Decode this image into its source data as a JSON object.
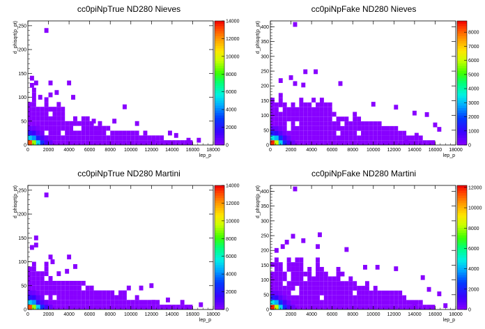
{
  "figure": {
    "layout": "2x2 grid of 2D histograms with color palette (COLZ)"
  },
  "chart_data": [
    {
      "type": "heatmap",
      "title": "cc0piNpTrue ND280 Nieves",
      "xlabel": "lep_p",
      "ylabel": "d_phisqrt(p_pt)",
      "xlim": [
        0,
        18000
      ],
      "ylim": [
        0,
        260
      ],
      "x_ticks": [
        "0",
        "2000",
        "4000",
        "6000",
        "8000",
        "10000",
        "12000",
        "14000",
        "16000",
        "18000"
      ],
      "y_ticks": [
        "0",
        "50",
        "100",
        "150",
        "200",
        "250"
      ],
      "colorbar": {
        "min": 0,
        "max": 14000,
        "ticks": [
          "0",
          "2000",
          "4000",
          "6000",
          "8000",
          "10000",
          "12000",
          "14000"
        ]
      },
      "cells": [
        [
          0,
          0,
          13000
        ],
        [
          400,
          0,
          9000
        ],
        [
          800,
          0,
          5200
        ],
        [
          1200,
          0,
          2600
        ],
        [
          1600,
          0,
          1200
        ],
        [
          2000,
          0,
          500
        ],
        [
          0,
          10,
          5000
        ],
        [
          400,
          10,
          4200
        ],
        [
          800,
          10,
          2200
        ],
        [
          1200,
          10,
          900
        ],
        [
          1600,
          10,
          400
        ],
        [
          0,
          20,
          1800
        ],
        [
          400,
          20,
          1400
        ],
        [
          800,
          20,
          700
        ],
        [
          1200,
          20,
          250
        ],
        [
          0,
          30,
          600
        ],
        [
          400,
          30,
          450
        ],
        [
          800,
          30,
          200
        ],
        [
          1600,
          235,
          5
        ],
        [
          200,
          135,
          5
        ],
        [
          200,
          120,
          5
        ],
        [
          600,
          125,
          5
        ],
        [
          2000,
          125,
          5
        ],
        [
          3800,
          125,
          5
        ],
        [
          400,
          110,
          5
        ],
        [
          1000,
          95,
          5
        ],
        [
          2600,
          105,
          5
        ],
        [
          2000,
          100,
          5
        ],
        [
          4200,
          95,
          5
        ],
        [
          9200,
          75,
          5
        ],
        [
          6200,
          45,
          5
        ],
        [
          8200,
          45,
          5
        ],
        [
          10400,
          40,
          5
        ],
        [
          11200,
          20,
          5
        ],
        [
          13600,
          20,
          5
        ],
        [
          14200,
          15,
          5
        ],
        [
          16400,
          5,
          5
        ],
        [
          15400,
          5,
          5
        ],
        [
          12000,
          5,
          5
        ]
      ],
      "bulk_cells_value": 5
    },
    {
      "type": "heatmap",
      "title": "cc0piNpFake ND280 Nieves",
      "xlabel": "lep_p",
      "ylabel": "d_phisqrt(p_pt)",
      "xlim": [
        0,
        18000
      ],
      "ylim": [
        0,
        420
      ],
      "x_ticks": [
        "0",
        "2000",
        "4000",
        "6000",
        "8000",
        "10000",
        "12000",
        "14000",
        "16000",
        "18000"
      ],
      "y_ticks": [
        "0",
        "50",
        "100",
        "150",
        "200",
        "250",
        "300",
        "350",
        "400"
      ],
      "colorbar": {
        "min": 0,
        "max": 8800,
        "ticks": [
          "0",
          "1000",
          "2000",
          "3000",
          "4000",
          "5000",
          "6000",
          "7000",
          "8000"
        ]
      },
      "cells": [
        [
          0,
          0,
          8500
        ],
        [
          400,
          0,
          6000
        ],
        [
          800,
          0,
          3200
        ],
        [
          1200,
          0,
          1500
        ],
        [
          1600,
          0,
          700
        ],
        [
          2000,
          0,
          300
        ],
        [
          0,
          16,
          3500
        ],
        [
          400,
          16,
          3000
        ],
        [
          800,
          16,
          1700
        ],
        [
          1200,
          16,
          700
        ],
        [
          1600,
          16,
          300
        ],
        [
          0,
          32,
          1300
        ],
        [
          400,
          32,
          1000
        ],
        [
          800,
          32,
          500
        ],
        [
          1200,
          32,
          200
        ],
        [
          0,
          48,
          400
        ],
        [
          400,
          48,
          320
        ],
        [
          800,
          48,
          150
        ],
        [
          2200,
          400,
          5
        ],
        [
          3200,
          240,
          5
        ],
        [
          4200,
          240,
          5
        ],
        [
          1800,
          220,
          5
        ],
        [
          800,
          210,
          5
        ],
        [
          2200,
          200,
          5
        ],
        [
          3000,
          195,
          5
        ],
        [
          6600,
          200,
          5
        ],
        [
          9800,
          130,
          5
        ],
        [
          12000,
          120,
          5
        ],
        [
          13800,
          100,
          5
        ],
        [
          15000,
          95,
          5
        ],
        [
          15800,
          60,
          5
        ],
        [
          16200,
          45,
          5
        ],
        [
          14000,
          25,
          5
        ],
        [
          13000,
          5,
          5
        ]
      ],
      "bulk_cells_value": 5
    },
    {
      "type": "heatmap",
      "title": "cc0piNpTrue ND280 Martini",
      "xlabel": "lep_p",
      "ylabel": "d_phisqrt(p_pt)",
      "xlim": [
        0,
        18000
      ],
      "ylim": [
        0,
        260
      ],
      "x_ticks": [
        "0",
        "2000",
        "4000",
        "6000",
        "8000",
        "10000",
        "12000",
        "14000",
        "16000",
        "18000"
      ],
      "y_ticks": [
        "0",
        "50",
        "100",
        "150",
        "200",
        "250"
      ],
      "colorbar": {
        "min": 0,
        "max": 14000,
        "ticks": [
          "0",
          "2000",
          "4000",
          "6000",
          "8000",
          "10000",
          "12000",
          "14000"
        ]
      },
      "cells": [
        [
          0,
          0,
          13000
        ],
        [
          400,
          0,
          9000
        ],
        [
          800,
          0,
          5200
        ],
        [
          1200,
          0,
          2600
        ],
        [
          1600,
          0,
          1200
        ],
        [
          2000,
          0,
          500
        ],
        [
          0,
          10,
          5000
        ],
        [
          400,
          10,
          4200
        ],
        [
          800,
          10,
          2200
        ],
        [
          1200,
          10,
          900
        ],
        [
          1600,
          10,
          400
        ],
        [
          0,
          20,
          1800
        ],
        [
          400,
          20,
          1400
        ],
        [
          800,
          20,
          700
        ],
        [
          1200,
          20,
          250
        ],
        [
          0,
          30,
          600
        ],
        [
          400,
          30,
          450
        ],
        [
          800,
          30,
          200
        ],
        [
          1600,
          235,
          5
        ],
        [
          600,
          145,
          5
        ],
        [
          600,
          130,
          5
        ],
        [
          200,
          125,
          5
        ],
        [
          2000,
          105,
          5
        ],
        [
          3800,
          105,
          5
        ],
        [
          2200,
          95,
          5
        ],
        [
          3600,
          75,
          5
        ],
        [
          4400,
          85,
          5
        ],
        [
          9600,
          40,
          5
        ],
        [
          10800,
          40,
          5
        ],
        [
          11800,
          45,
          5
        ],
        [
          12000,
          10,
          5
        ],
        [
          13400,
          15,
          5
        ],
        [
          14800,
          10,
          5
        ],
        [
          16600,
          5,
          5
        ]
      ],
      "bulk_cells_value": 5
    },
    {
      "type": "heatmap",
      "title": "cc0piNpFake ND280 Martini",
      "xlabel": "lep_p",
      "ylabel": "d_phisqrt(p_pt)",
      "xlim": [
        0,
        18000
      ],
      "ylim": [
        0,
        420
      ],
      "x_ticks": [
        "0",
        "2000",
        "4000",
        "6000",
        "8000",
        "10000",
        "12000",
        "14000",
        "16000",
        "18000"
      ],
      "y_ticks": [
        "0",
        "50",
        "100",
        "150",
        "200",
        "250",
        "300",
        "350",
        "400"
      ],
      "colorbar": {
        "min": 0,
        "max": 12200,
        "ticks": [
          "0",
          "2000",
          "4000",
          "6000",
          "8000",
          "10000",
          "12000"
        ]
      },
      "cells": [
        [
          0,
          0,
          11800
        ],
        [
          400,
          0,
          8200
        ],
        [
          800,
          0,
          4500
        ],
        [
          1200,
          0,
          2100
        ],
        [
          1600,
          0,
          900
        ],
        [
          2000,
          0,
          400
        ],
        [
          0,
          16,
          4800
        ],
        [
          400,
          16,
          4000
        ],
        [
          800,
          16,
          2300
        ],
        [
          1200,
          16,
          1000
        ],
        [
          1600,
          16,
          400
        ],
        [
          0,
          32,
          1700
        ],
        [
          400,
          32,
          1300
        ],
        [
          800,
          32,
          650
        ],
        [
          1200,
          32,
          250
        ],
        [
          0,
          48,
          550
        ],
        [
          400,
          48,
          420
        ],
        [
          800,
          48,
          200
        ],
        [
          2200,
          400,
          5
        ],
        [
          4600,
          245,
          5
        ],
        [
          2000,
          240,
          5
        ],
        [
          3000,
          225,
          5
        ],
        [
          1400,
          220,
          5
        ],
        [
          1000,
          205,
          5
        ],
        [
          4400,
          205,
          5
        ],
        [
          7200,
          195,
          5
        ],
        [
          9000,
          135,
          5
        ],
        [
          10200,
          135,
          5
        ],
        [
          12000,
          130,
          5
        ],
        [
          14600,
          100,
          5
        ],
        [
          15200,
          60,
          5
        ],
        [
          16200,
          45,
          5
        ],
        [
          13800,
          15,
          5
        ],
        [
          16800,
          5,
          5
        ]
      ],
      "bulk_cells_value": 5
    }
  ]
}
